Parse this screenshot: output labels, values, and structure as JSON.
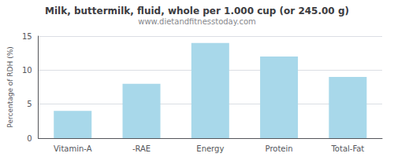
{
  "chart_data": {
    "type": "bar",
    "title": "Milk, buttermilk, fluid, whole per 1.000 cup (or 245.00 g)",
    "subtitle": "www.dietandfitnesstoday.com",
    "categories": [
      "Vitamin-A",
      "-RAE",
      "Energy",
      "Protein",
      "Total-Fat"
    ],
    "values": [
      4.0,
      8.0,
      14.0,
      12.0,
      9.0
    ],
    "color": "#a8d8ea",
    "ylabel": "Percentage of RDH (%)",
    "ylim": [
      0,
      15
    ],
    "yticks": [
      0,
      5,
      10,
      15
    ],
    "grid": true
  }
}
